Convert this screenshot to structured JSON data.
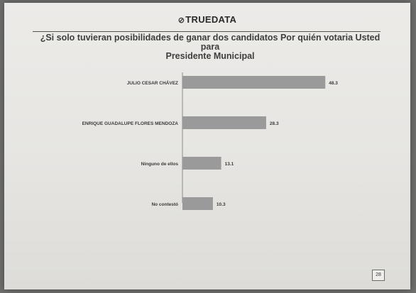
{
  "header": {
    "logo_text": "TRUEDATA"
  },
  "question": {
    "line1": "¿Si solo tuvieran posibilidades  de ganar dos candidatos  Por quién votaria Usted para",
    "line2": "Presidente Municipal"
  },
  "chart_data": {
    "type": "bar",
    "orientation": "horizontal",
    "categories": [
      "JULIO CESAR CHÁVEZ",
      "ENRIQUE GUADALUPE FLORES MENDOZA",
      "Ninguno de ellos",
      "No contestó"
    ],
    "values": [
      48.3,
      28.3,
      13.1,
      10.3
    ],
    "data_labels": [
      "48.3",
      "28.3",
      "13.1",
      "10.3"
    ],
    "xlim": [
      0,
      60
    ],
    "bar_color": "#9a9a9a",
    "grid": false,
    "legend": "none"
  },
  "footer": {
    "page_number": "28"
  }
}
